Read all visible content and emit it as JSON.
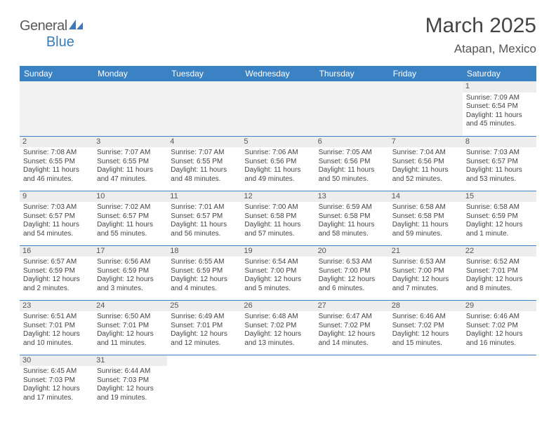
{
  "logo": {
    "text1": "General",
    "text2": "Blue"
  },
  "title": "March 2025",
  "location": "Atapan, Mexico",
  "colors": {
    "header_bg": "#3b82c4",
    "header_text": "#ffffff",
    "daynum_bg": "#ededed",
    "border": "#3b82c4",
    "text": "#444444"
  },
  "weekdays": [
    "Sunday",
    "Monday",
    "Tuesday",
    "Wednesday",
    "Thursday",
    "Friday",
    "Saturday"
  ],
  "weeks": [
    [
      null,
      null,
      null,
      null,
      null,
      null,
      {
        "n": "1",
        "sr": "Sunrise: 7:09 AM",
        "ss": "Sunset: 6:54 PM",
        "dl": "Daylight: 11 hours and 45 minutes."
      }
    ],
    [
      {
        "n": "2",
        "sr": "Sunrise: 7:08 AM",
        "ss": "Sunset: 6:55 PM",
        "dl": "Daylight: 11 hours and 46 minutes."
      },
      {
        "n": "3",
        "sr": "Sunrise: 7:07 AM",
        "ss": "Sunset: 6:55 PM",
        "dl": "Daylight: 11 hours and 47 minutes."
      },
      {
        "n": "4",
        "sr": "Sunrise: 7:07 AM",
        "ss": "Sunset: 6:55 PM",
        "dl": "Daylight: 11 hours and 48 minutes."
      },
      {
        "n": "5",
        "sr": "Sunrise: 7:06 AM",
        "ss": "Sunset: 6:56 PM",
        "dl": "Daylight: 11 hours and 49 minutes."
      },
      {
        "n": "6",
        "sr": "Sunrise: 7:05 AM",
        "ss": "Sunset: 6:56 PM",
        "dl": "Daylight: 11 hours and 50 minutes."
      },
      {
        "n": "7",
        "sr": "Sunrise: 7:04 AM",
        "ss": "Sunset: 6:56 PM",
        "dl": "Daylight: 11 hours and 52 minutes."
      },
      {
        "n": "8",
        "sr": "Sunrise: 7:03 AM",
        "ss": "Sunset: 6:57 PM",
        "dl": "Daylight: 11 hours and 53 minutes."
      }
    ],
    [
      {
        "n": "9",
        "sr": "Sunrise: 7:03 AM",
        "ss": "Sunset: 6:57 PM",
        "dl": "Daylight: 11 hours and 54 minutes."
      },
      {
        "n": "10",
        "sr": "Sunrise: 7:02 AM",
        "ss": "Sunset: 6:57 PM",
        "dl": "Daylight: 11 hours and 55 minutes."
      },
      {
        "n": "11",
        "sr": "Sunrise: 7:01 AM",
        "ss": "Sunset: 6:57 PM",
        "dl": "Daylight: 11 hours and 56 minutes."
      },
      {
        "n": "12",
        "sr": "Sunrise: 7:00 AM",
        "ss": "Sunset: 6:58 PM",
        "dl": "Daylight: 11 hours and 57 minutes."
      },
      {
        "n": "13",
        "sr": "Sunrise: 6:59 AM",
        "ss": "Sunset: 6:58 PM",
        "dl": "Daylight: 11 hours and 58 minutes."
      },
      {
        "n": "14",
        "sr": "Sunrise: 6:58 AM",
        "ss": "Sunset: 6:58 PM",
        "dl": "Daylight: 11 hours and 59 minutes."
      },
      {
        "n": "15",
        "sr": "Sunrise: 6:58 AM",
        "ss": "Sunset: 6:59 PM",
        "dl": "Daylight: 12 hours and 1 minute."
      }
    ],
    [
      {
        "n": "16",
        "sr": "Sunrise: 6:57 AM",
        "ss": "Sunset: 6:59 PM",
        "dl": "Daylight: 12 hours and 2 minutes."
      },
      {
        "n": "17",
        "sr": "Sunrise: 6:56 AM",
        "ss": "Sunset: 6:59 PM",
        "dl": "Daylight: 12 hours and 3 minutes."
      },
      {
        "n": "18",
        "sr": "Sunrise: 6:55 AM",
        "ss": "Sunset: 6:59 PM",
        "dl": "Daylight: 12 hours and 4 minutes."
      },
      {
        "n": "19",
        "sr": "Sunrise: 6:54 AM",
        "ss": "Sunset: 7:00 PM",
        "dl": "Daylight: 12 hours and 5 minutes."
      },
      {
        "n": "20",
        "sr": "Sunrise: 6:53 AM",
        "ss": "Sunset: 7:00 PM",
        "dl": "Daylight: 12 hours and 6 minutes."
      },
      {
        "n": "21",
        "sr": "Sunrise: 6:53 AM",
        "ss": "Sunset: 7:00 PM",
        "dl": "Daylight: 12 hours and 7 minutes."
      },
      {
        "n": "22",
        "sr": "Sunrise: 6:52 AM",
        "ss": "Sunset: 7:01 PM",
        "dl": "Daylight: 12 hours and 8 minutes."
      }
    ],
    [
      {
        "n": "23",
        "sr": "Sunrise: 6:51 AM",
        "ss": "Sunset: 7:01 PM",
        "dl": "Daylight: 12 hours and 10 minutes."
      },
      {
        "n": "24",
        "sr": "Sunrise: 6:50 AM",
        "ss": "Sunset: 7:01 PM",
        "dl": "Daylight: 12 hours and 11 minutes."
      },
      {
        "n": "25",
        "sr": "Sunrise: 6:49 AM",
        "ss": "Sunset: 7:01 PM",
        "dl": "Daylight: 12 hours and 12 minutes."
      },
      {
        "n": "26",
        "sr": "Sunrise: 6:48 AM",
        "ss": "Sunset: 7:02 PM",
        "dl": "Daylight: 12 hours and 13 minutes."
      },
      {
        "n": "27",
        "sr": "Sunrise: 6:47 AM",
        "ss": "Sunset: 7:02 PM",
        "dl": "Daylight: 12 hours and 14 minutes."
      },
      {
        "n": "28",
        "sr": "Sunrise: 6:46 AM",
        "ss": "Sunset: 7:02 PM",
        "dl": "Daylight: 12 hours and 15 minutes."
      },
      {
        "n": "29",
        "sr": "Sunrise: 6:46 AM",
        "ss": "Sunset: 7:02 PM",
        "dl": "Daylight: 12 hours and 16 minutes."
      }
    ],
    [
      {
        "n": "30",
        "sr": "Sunrise: 6:45 AM",
        "ss": "Sunset: 7:03 PM",
        "dl": "Daylight: 12 hours and 17 minutes."
      },
      {
        "n": "31",
        "sr": "Sunrise: 6:44 AM",
        "ss": "Sunset: 7:03 PM",
        "dl": "Daylight: 12 hours and 19 minutes."
      },
      null,
      null,
      null,
      null,
      null
    ]
  ]
}
